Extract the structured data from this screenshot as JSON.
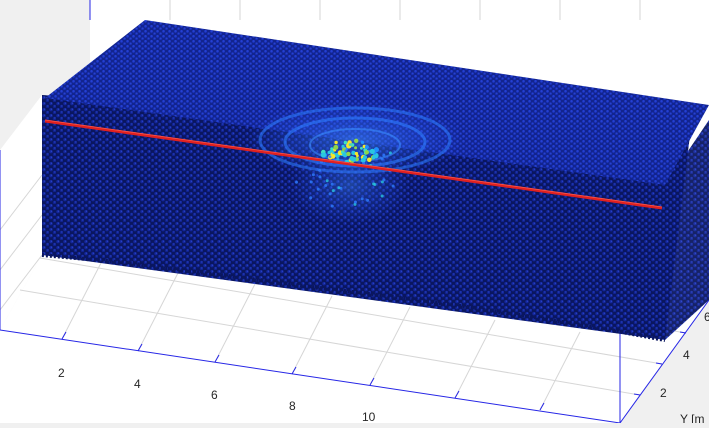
{
  "plot": {
    "x_axis": {
      "ticks": [
        "2",
        "4",
        "6",
        "8",
        "10"
      ],
      "label": ""
    },
    "y_axis": {
      "ticks": [
        "2",
        "4",
        "6"
      ],
      "label": "Y [m"
    },
    "colors": {
      "background": "#f0f0f0",
      "axes_face": "#ffffff",
      "axis_line": "#2626e6",
      "grid": "#d6d6d6",
      "particle_dark": "#0b1a6e",
      "particle_blue": "#1730c8",
      "particle_mid": "#1f4fff",
      "wave": "#2e7dff",
      "hot_cyan": "#29c6e0",
      "hot_yellow": "#f5e62a",
      "hot_green": "#8fd44a",
      "profile_line": "#e02020"
    }
  }
}
